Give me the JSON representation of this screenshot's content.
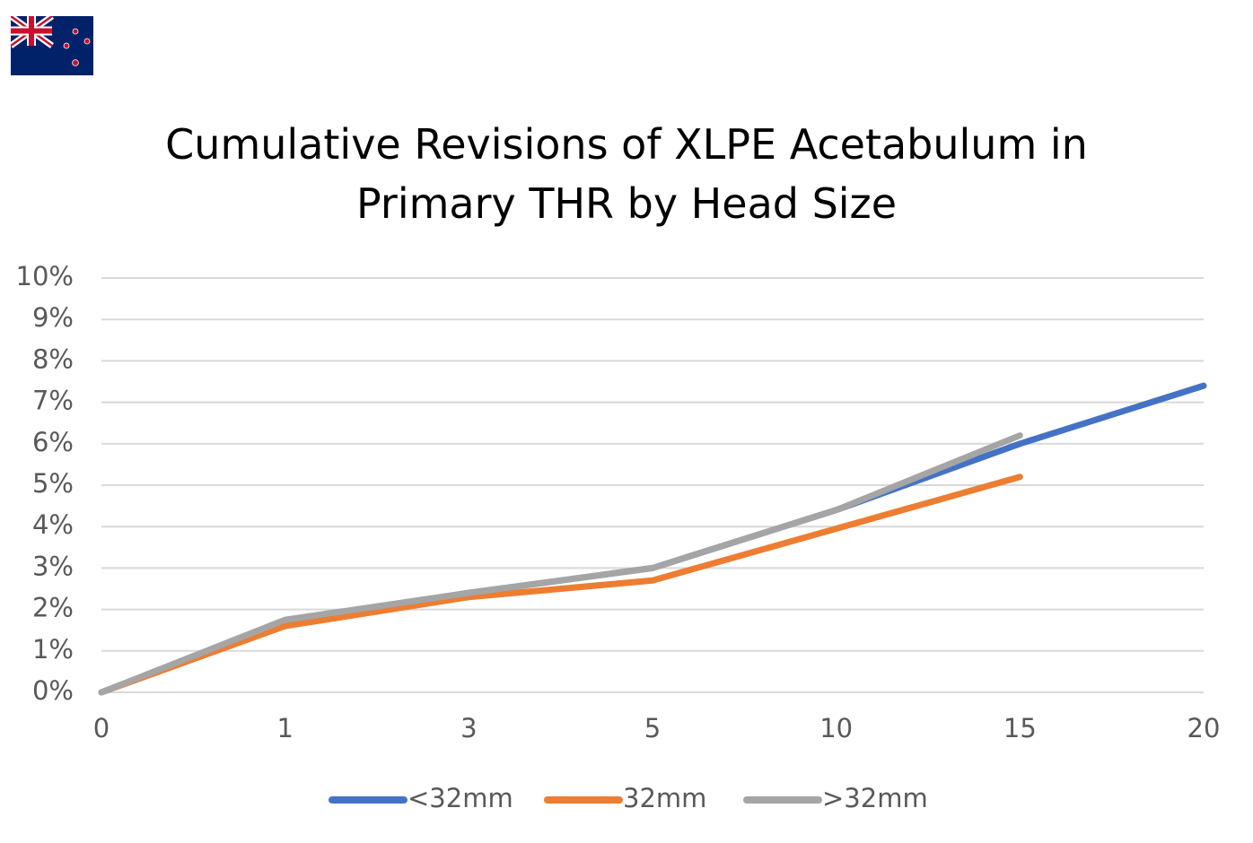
{
  "chart_data": {
    "type": "line",
    "title": "Cumulative Revisions of XLPE Acetabulum in Primary THR by Head Size",
    "categories": [
      "0",
      "1",
      "3",
      "5",
      "10",
      "15",
      "20"
    ],
    "series": [
      {
        "name": "<32mm",
        "color": "#4472c4",
        "values": [
          0,
          1.7,
          2.4,
          3.0,
          4.4,
          6.0,
          7.4
        ]
      },
      {
        "name": "32mm",
        "color": "#ed7d31",
        "values": [
          0,
          1.6,
          2.3,
          2.7,
          3.95,
          5.2,
          null
        ]
      },
      {
        "name": ">32mm",
        "color": "#a5a5a5",
        "values": [
          0,
          1.75,
          2.4,
          3.0,
          4.4,
          6.2,
          null
        ]
      }
    ],
    "ylim": [
      0,
      10
    ],
    "yticks": [
      {
        "value": 0,
        "label": "0%"
      },
      {
        "value": 1,
        "label": "1%"
      },
      {
        "value": 2,
        "label": "2%"
      },
      {
        "value": 3,
        "label": "3%"
      },
      {
        "value": 4,
        "label": "4%"
      },
      {
        "value": 5,
        "label": "5%"
      },
      {
        "value": 6,
        "label": "6%"
      },
      {
        "value": 7,
        "label": "7%"
      },
      {
        "value": 8,
        "label": "8%"
      },
      {
        "value": 9,
        "label": "9%"
      },
      {
        "value": 10,
        "label": "10%"
      }
    ],
    "grid": true,
    "legend": "bottom"
  }
}
